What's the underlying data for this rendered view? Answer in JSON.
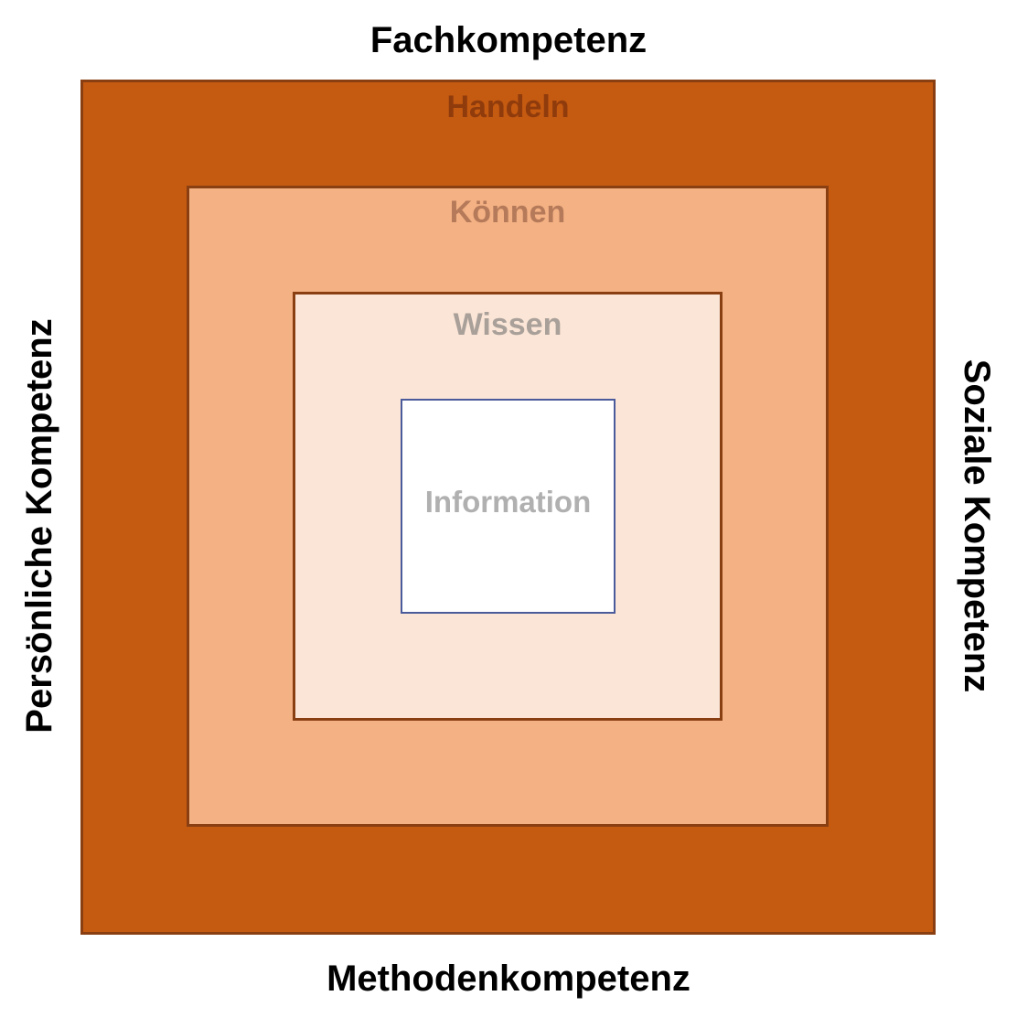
{
  "labels": {
    "top": "Fachkompetenz",
    "bottom": "Methodenkompetenz",
    "left": "Persönliche Kompetenz",
    "right": "Soziale Kompetenz"
  },
  "levels": [
    {
      "name": "Handeln",
      "fill": "#c55a11"
    },
    {
      "name": "Können",
      "fill": "#f4b183"
    },
    {
      "name": "Wissen",
      "fill": "#fbe5d6"
    },
    {
      "name": "Information",
      "fill": "#ffffff"
    }
  ]
}
